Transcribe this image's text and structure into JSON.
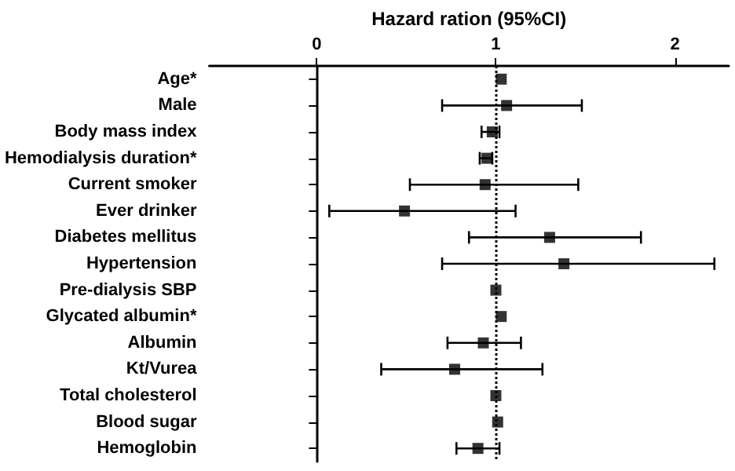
{
  "chart_data": {
    "type": "scatter",
    "orientation": "horizontal",
    "xlabel": "Hazard ration (95%CI)",
    "categories": [
      "Age*",
      "Male",
      "Body mass index",
      "Hemodialysis duration*",
      "Current smoker",
      "Ever drinker",
      "Diabetes mellitus",
      "Hypertension",
      "Pre-dialysis SBP",
      "Glycated albumin*",
      "Albumin",
      "Kt/Vurea",
      "Total cholesterol",
      "Blood sugar",
      "Hemoglobin"
    ],
    "values": [
      1.03,
      1.06,
      0.98,
      0.95,
      0.94,
      0.49,
      1.3,
      1.38,
      1.0,
      1.03,
      0.93,
      0.77,
      1.0,
      1.01,
      0.9
    ],
    "errors": [
      null,
      [
        0.7,
        1.48
      ],
      [
        0.92,
        1.02
      ],
      [
        0.91,
        0.98
      ],
      [
        0.52,
        1.46
      ],
      [
        0.07,
        1.11
      ],
      [
        0.85,
        1.81
      ],
      [
        0.7,
        2.22
      ],
      null,
      null,
      [
        0.73,
        1.14
      ],
      [
        0.36,
        1.26
      ],
      null,
      null,
      [
        0.78,
        1.02
      ]
    ],
    "color": "#000000",
    "marker": "square",
    "xlim": [
      -0.6,
      2.3
    ],
    "xticks": [
      0,
      1,
      2
    ],
    "ref_lines": [
      {
        "axis": "x",
        "value": 1,
        "line_style": "dotted",
        "color": "#000000"
      }
    ],
    "grid": false
  }
}
